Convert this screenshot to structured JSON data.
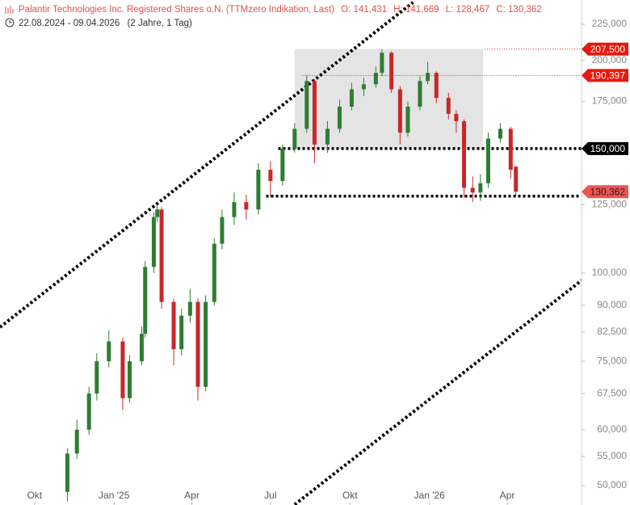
{
  "chart_data": {
    "type": "candlestick",
    "title": "Palantir Technologies Inc. Registered Shares o.N. (TTMzero Indikation, Last)",
    "header_quote": [
      "O: 141,431",
      "H: 141,669",
      "L: 128,467",
      "C: 130,362"
    ],
    "period": "22.08.2024 - 09.04.2026",
    "period_note": "(2 Jahre, 1 Tag)",
    "log_scale": true,
    "up_color": "#2e7d32",
    "down_color": "#c62828",
    "xlim": [
      0,
      673
    ],
    "ylim": [
      46940,
      243500
    ],
    "xticks": [
      {
        "value": 40,
        "label": "Okt"
      },
      {
        "value": 132,
        "label": "Jan '25"
      },
      {
        "value": 222,
        "label": "Apr"
      },
      {
        "value": 313,
        "label": "Jul"
      },
      {
        "value": 405,
        "label": "Okt"
      },
      {
        "value": 497,
        "label": "Jan '26"
      },
      {
        "value": 587,
        "label": "Apr"
      }
    ],
    "yticks": [
      {
        "value": 225000,
        "label": "225,000"
      },
      {
        "value": 200000,
        "label": "200,000"
      },
      {
        "value": 175000,
        "label": "175,000"
      },
      {
        "value": 150000,
        "label": "150,000"
      },
      {
        "value": 125000,
        "label": "125,000"
      },
      {
        "value": 100000,
        "label": "100,000"
      },
      {
        "value": 90000,
        "label": "90,000"
      },
      {
        "value": 82500,
        "label": "82,500"
      },
      {
        "value": 75000,
        "label": "75,000"
      },
      {
        "value": 67500,
        "label": "67,500"
      },
      {
        "value": 60000,
        "label": "60,000"
      },
      {
        "value": 55000,
        "label": "55,000"
      },
      {
        "value": 50000,
        "label": "50,000"
      }
    ],
    "x": [
      78,
      89,
      103,
      112,
      126,
      142,
      150,
      164,
      168,
      178,
      182,
      187,
      201,
      210,
      220,
      229,
      238,
      248,
      257,
      271,
      285,
      299,
      313,
      327,
      341,
      355,
      364,
      379,
      393,
      407,
      421,
      435,
      442,
      453,
      463,
      472,
      486,
      495,
      505,
      519,
      528,
      537,
      547,
      556,
      565,
      579,
      591,
      597
    ],
    "open": [
      49000,
      55500,
      60000,
      67500,
      75000,
      80000,
      66500,
      75000,
      82000,
      102000,
      120000,
      123000,
      91000,
      78000,
      87000,
      91000,
      69000,
      91000,
      110000,
      120000,
      126000,
      123000,
      140000,
      135000,
      150000,
      160000,
      187000,
      152000,
      160000,
      172000,
      182000,
      185000,
      192000,
      205000,
      182000,
      158000,
      172000,
      187000,
      192000,
      177000,
      168000,
      164000,
      132000,
      130000,
      134000,
      155000,
      160000,
      141431
    ],
    "high": [
      56500,
      62000,
      69000,
      77000,
      83000,
      81000,
      76500,
      84000,
      104000,
      122000,
      125000,
      124000,
      92000,
      89000,
      95000,
      92000,
      93000,
      112000,
      123000,
      130000,
      129000,
      143000,
      144000,
      152000,
      163000,
      190397,
      188000,
      164000,
      176000,
      186000,
      189000,
      196000,
      207500,
      206000,
      184000,
      175000,
      190000,
      199000,
      193000,
      180000,
      170000,
      165000,
      137000,
      138000,
      158000,
      163000,
      161000,
      141669
    ],
    "low": [
      47500,
      54500,
      59000,
      66000,
      73500,
      64000,
      65500,
      74000,
      81000,
      100000,
      118000,
      89000,
      74000,
      76500,
      85000,
      66000,
      68000,
      90000,
      108000,
      117000,
      119000,
      121000,
      128000,
      133000,
      148000,
      158000,
      143000,
      148000,
      158000,
      170000,
      178000,
      183000,
      190000,
      180000,
      152000,
      156000,
      170000,
      185000,
      174000,
      165000,
      158000,
      128000,
      126000,
      126500,
      132000,
      153000,
      136000,
      128467
    ],
    "close": [
      55500,
      60000,
      67500,
      75000,
      80000,
      66500,
      75000,
      82000,
      102000,
      120000,
      123000,
      91000,
      78000,
      87000,
      91000,
      69000,
      91000,
      110000,
      120000,
      126000,
      123000,
      140000,
      135000,
      150000,
      160000,
      187000,
      152000,
      160000,
      172000,
      182000,
      185000,
      192000,
      205000,
      182000,
      158000,
      172000,
      187000,
      192000,
      177000,
      168000,
      164000,
      132000,
      130000,
      134000,
      155000,
      160000,
      140000,
      130362
    ],
    "range_box": {
      "x": [
        341,
        559
      ],
      "y": [
        150000,
        207500
      ],
      "color": "#e4e4e4"
    },
    "trend_lines": [
      {
        "x": [
          0,
          478
        ],
        "y": [
          83800,
          241600
        ]
      },
      {
        "x": [
          341,
          673
        ],
        "y": [
          47000,
          97600
        ]
      }
    ],
    "levels": [
      {
        "value": 207500,
        "label": "207,500",
        "start": 561,
        "color": "#e8180c",
        "line": "thin"
      },
      {
        "value": 190397,
        "label": "190,397",
        "start": 350,
        "color": "#e8180c",
        "line": "thin"
      },
      {
        "value": 150000,
        "label": "150,000",
        "start": 322,
        "color": "#000000",
        "line": "thick"
      },
      {
        "value": 130362,
        "label": "130,362",
        "color": "#ef5350"
      },
      {
        "value": 128467,
        "start": 308,
        "color": "#000000",
        "line": "thick"
      }
    ]
  }
}
